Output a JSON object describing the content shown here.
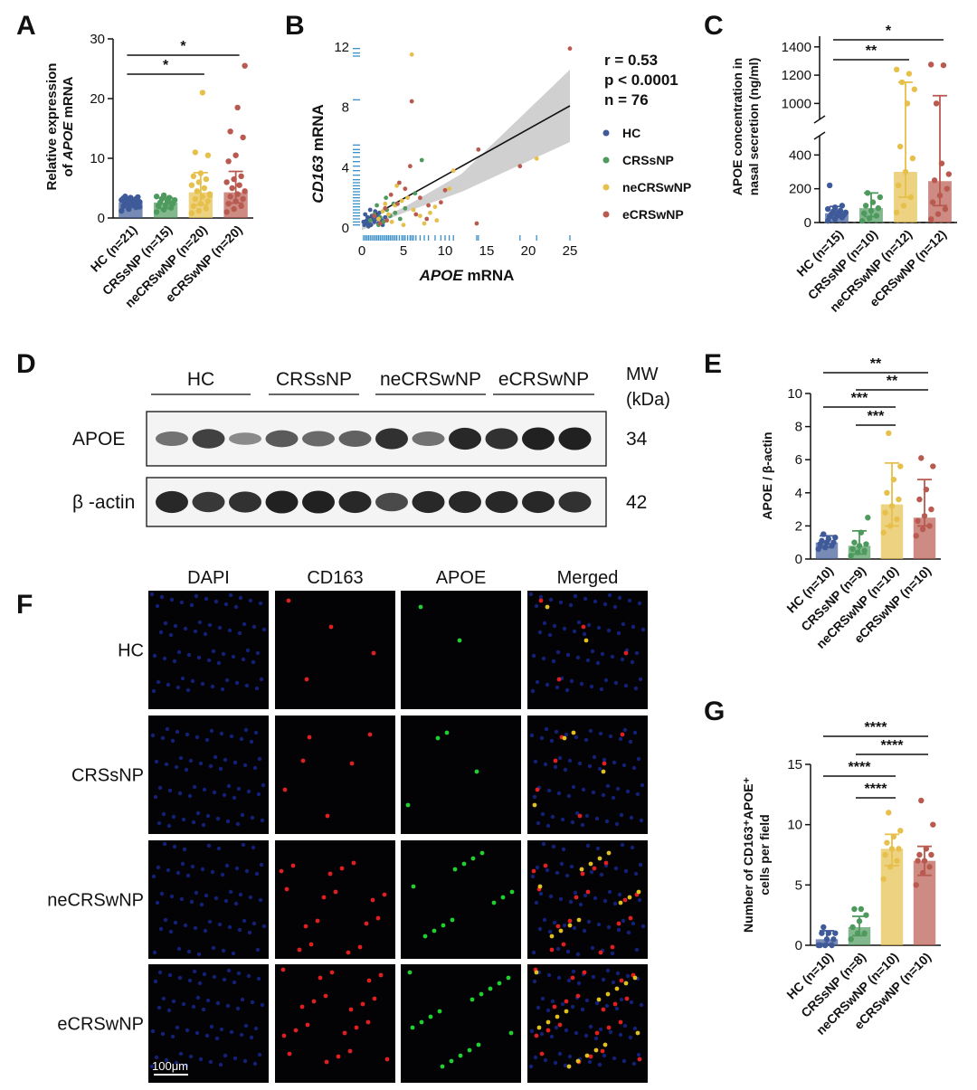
{
  "panel_labels": {
    "A": "A",
    "B": "B",
    "C": "C",
    "D": "D",
    "E": "E",
    "F": "F",
    "G": "G"
  },
  "colors": {
    "HC": "#3f5a99",
    "CRSsNP": "#4e9a5e",
    "neCRSwNP": "#e6c04b",
    "eCRSwNP": "#b85a4f",
    "ci": "#c8c8c8",
    "rug": "#3a8fc8"
  },
  "chart_data": [
    {
      "id": "A",
      "type": "bar",
      "ylabel_line1": "Relative expression",
      "ylabel_line2_prefix": "of ",
      "ylabel_line2_italic": "APOE",
      "ylabel_line2_suffix": " mRNA",
      "ylim": [
        0,
        30
      ],
      "yticks": [
        0,
        10,
        20,
        30
      ],
      "categories": [
        "HC (n=21)",
        "CRSsNP (n=15)",
        "neCRSwNP (n=20)",
        "eCRSwNP (n=20)"
      ],
      "groups": [
        "HC",
        "CRSsNP",
        "neCRSwNP",
        "eCRSwNP"
      ],
      "means": [
        2.6,
        2.6,
        4.3,
        4.3
      ],
      "err_low": [
        1.8,
        1.6,
        2.2,
        2.5
      ],
      "err_high": [
        3.3,
        3.4,
        7.6,
        7.8
      ],
      "points": [
        [
          1.2,
          1.5,
          1.8,
          2.0,
          2.1,
          2.3,
          2.5,
          2.6,
          2.7,
          2.8,
          2.9,
          3.0,
          3.1,
          3.2,
          3.3,
          3.4,
          3.5,
          3.6,
          2.2,
          1.9,
          2.4
        ],
        [
          1.0,
          1.4,
          1.7,
          2.0,
          2.2,
          2.4,
          2.6,
          2.8,
          3.0,
          3.2,
          3.4,
          3.6,
          3.8,
          2.5,
          2.1
        ],
        [
          0.8,
          1.2,
          1.6,
          2.0,
          2.4,
          2.8,
          3.2,
          3.6,
          4.0,
          4.5,
          5.0,
          5.5,
          6.0,
          6.5,
          7.0,
          7.5,
          10.5,
          11.0,
          21.0,
          3.8
        ],
        [
          1.0,
          1.5,
          2.0,
          2.4,
          2.8,
          3.2,
          3.6,
          4.0,
          4.5,
          5.0,
          5.5,
          6.0,
          6.5,
          7.0,
          9.5,
          10.5,
          13.5,
          14.5,
          18.5,
          25.5
        ]
      ],
      "sig": [
        {
          "from": 0,
          "to": 2,
          "label": "*",
          "y": 27.2
        },
        {
          "from": 0,
          "to": 3,
          "label": "*",
          "y": 27.2
        }
      ]
    },
    {
      "id": "B",
      "type": "scatter",
      "xlabel_italic": "APOE",
      "xlabel_suffix": " mRNA",
      "ylabel_italic": "CD163",
      "ylabel_suffix": " mRNA",
      "xlim": [
        0,
        25
      ],
      "ylim": [
        0,
        12
      ],
      "xticks": [
        0,
        5,
        10,
        15,
        20,
        25
      ],
      "yticks": [
        0,
        4,
        8,
        12
      ],
      "stats": [
        "r = 0.53",
        "p < 0.0001",
        "n = 76"
      ],
      "legend": [
        "HC",
        "CRSsNP",
        "neCRSwNP",
        "eCRSwNP"
      ],
      "fit": {
        "x0": 0,
        "y0": 0.4,
        "x1": 25,
        "y1": 8.1
      },
      "points": {
        "HC": [
          [
            0.3,
            0.2
          ],
          [
            0.6,
            0.5
          ],
          [
            0.9,
            0.3
          ],
          [
            1.2,
            0.8
          ],
          [
            1.5,
            0.4
          ],
          [
            1.8,
            0.6
          ],
          [
            2.1,
            1.0
          ],
          [
            0.4,
            0.9
          ],
          [
            1.1,
            0.2
          ],
          [
            2.4,
            0.5
          ],
          [
            0.8,
            0.1
          ],
          [
            1.6,
            1.1
          ],
          [
            2.8,
            0.7
          ],
          [
            0.5,
            0.3
          ],
          [
            1.3,
            0.6
          ],
          [
            2.0,
            0.3
          ],
          [
            0.2,
            0.4
          ],
          [
            1.9,
            0.8
          ],
          [
            2.5,
            0.2
          ],
          [
            1.0,
            1.2
          ],
          [
            0.7,
            0.7
          ]
        ],
        "CRSsNP": [
          [
            1.0,
            0.5
          ],
          [
            1.5,
            0.9
          ],
          [
            2.2,
            0.7
          ],
          [
            3.0,
            1.2
          ],
          [
            2.6,
            0.4
          ],
          [
            1.8,
            1.5
          ],
          [
            3.4,
            0.8
          ],
          [
            4.0,
            1.0
          ],
          [
            2.0,
            0.2
          ],
          [
            3.8,
            1.6
          ],
          [
            5.2,
            1.3
          ],
          [
            4.6,
            0.6
          ],
          [
            6.4,
            2.3
          ],
          [
            7.2,
            4.5
          ],
          [
            2.9,
            2.0
          ]
        ],
        "neCRSwNP": [
          [
            2.0,
            0.6
          ],
          [
            2.5,
            1.1
          ],
          [
            3.2,
            0.9
          ],
          [
            4.0,
            1.5
          ],
          [
            4.8,
            1.8
          ],
          [
            5.5,
            2.0
          ],
          [
            6.2,
            1.2
          ],
          [
            7.0,
            0.8
          ],
          [
            7.5,
            0.3
          ],
          [
            8.2,
            1.0
          ],
          [
            9.0,
            0.5
          ],
          [
            10.5,
            2.6
          ],
          [
            4.2,
            2.8
          ],
          [
            6.0,
            11.5
          ],
          [
            11.0,
            3.8
          ],
          [
            21.0,
            4.6
          ],
          [
            3.6,
            0.4
          ],
          [
            5.0,
            0.2
          ],
          [
            8.8,
            1.4
          ],
          [
            2.8,
            1.6
          ]
        ],
        "eCRSwNP": [
          [
            1.5,
            0.8
          ],
          [
            2.8,
            1.3
          ],
          [
            3.5,
            2.2
          ],
          [
            4.5,
            3.0
          ],
          [
            5.2,
            2.6
          ],
          [
            6.0,
            8.4
          ],
          [
            6.5,
            0.9
          ],
          [
            7.0,
            2.0
          ],
          [
            8.0,
            1.5
          ],
          [
            13.8,
            0.3
          ],
          [
            14.0,
            5.2
          ],
          [
            19.0,
            4.1
          ],
          [
            25.0,
            11.9
          ],
          [
            5.8,
            4.1
          ],
          [
            9.5,
            1.7
          ],
          [
            10.0,
            2.5
          ],
          [
            3.0,
            0.5
          ],
          [
            4.3,
            1.6
          ],
          [
            7.8,
            0.6
          ],
          [
            2.2,
            0.3
          ]
        ]
      },
      "rug_y": [
        11.9,
        11.6,
        11.4,
        8.5,
        5.5,
        5.2,
        5.0,
        4.7,
        4.4,
        4.1,
        3.8,
        3.5,
        3.2,
        3.0,
        2.8,
        2.6,
        2.4,
        2.2,
        2.0,
        1.8,
        1.6,
        1.4,
        1.2,
        1.0,
        0.8,
        0.6,
        0.4,
        0.2
      ],
      "rug_x": [
        0.2,
        0.4,
        0.6,
        0.8,
        1.0,
        1.2,
        1.4,
        1.6,
        1.8,
        2.0,
        2.2,
        2.4,
        2.6,
        2.8,
        3.0,
        3.2,
        3.4,
        3.6,
        3.8,
        4.0,
        4.2,
        4.5,
        4.8,
        5.0,
        5.2,
        5.5,
        5.8,
        6.0,
        6.2,
        6.5,
        7.0,
        7.5,
        8.0,
        8.8,
        9.5,
        10.0,
        10.5,
        11.0,
        13.8,
        14.0,
        19.0,
        21.0,
        25.0
      ]
    },
    {
      "id": "C",
      "type": "bar",
      "ylabel_line1": "APOE concentration in",
      "ylabel_line2": "nasal secretion (ng/ml)",
      "yticks_low": [
        0,
        200,
        400
      ],
      "yticks_high": [
        1000,
        1200,
        1400
      ],
      "categories": [
        "HC (n=15)",
        "CRSsNP (n=10)",
        "neCRSwNP (n=12)",
        "eCRSwNP (n=12)"
      ],
      "groups": [
        "HC",
        "CRSsNP",
        "neCRSwNP",
        "eCRSwNP"
      ],
      "means": [
        55,
        85,
        300,
        245
      ],
      "err_low": [
        30,
        35,
        150,
        100
      ],
      "err_high": [
        95,
        175,
        1150,
        1055
      ],
      "points": [
        [
          10,
          20,
          30,
          35,
          40,
          45,
          50,
          55,
          60,
          65,
          70,
          80,
          90,
          100,
          220
        ],
        [
          10,
          25,
          40,
          55,
          70,
          85,
          100,
          120,
          150,
          175
        ],
        [
          60,
          100,
          150,
          220,
          300,
          380,
          450,
          1000,
          1100,
          1150,
          1210,
          1240
        ],
        [
          20,
          50,
          80,
          120,
          160,
          200,
          250,
          350,
          500,
          1000,
          1270,
          1275
        ]
      ],
      "sig": [
        {
          "from": 0,
          "to": 2,
          "label": "**"
        },
        {
          "from": 0,
          "to": 3,
          "label": "*"
        }
      ]
    },
    {
      "id": "E",
      "type": "bar",
      "ylabel": "APOE / β-actin",
      "ylim": [
        0,
        10
      ],
      "yticks": [
        0,
        2,
        4,
        6,
        8,
        10
      ],
      "categories": [
        "HC (n=10)",
        "CRSsNP (n=9)",
        "neCRSwNP (n=10)",
        "eCRSwNP (n=10)"
      ],
      "groups": [
        "HC",
        "CRSsNP",
        "neCRSwNP",
        "eCRSwNP"
      ],
      "means": [
        1.0,
        0.8,
        3.3,
        2.5
      ],
      "err_low": [
        0.7,
        0.3,
        2.0,
        2.0
      ],
      "err_high": [
        1.4,
        1.7,
        5.8,
        4.8
      ],
      "points": [
        [
          0.6,
          0.7,
          0.8,
          0.9,
          1.0,
          1.0,
          1.1,
          1.2,
          1.3,
          1.5
        ],
        [
          0.2,
          0.4,
          0.5,
          0.6,
          0.8,
          0.9,
          1.0,
          1.6,
          2.5
        ],
        [
          1.6,
          2.0,
          2.4,
          2.8,
          3.2,
          3.6,
          4.0,
          4.8,
          5.6,
          7.6
        ],
        [
          1.4,
          1.8,
          2.0,
          2.3,
          2.6,
          3.0,
          3.6,
          4.2,
          5.6,
          6.1
        ]
      ],
      "sig": [
        {
          "from": 0,
          "to": 3,
          "label": "**",
          "y": 11.6
        },
        {
          "from": 1,
          "to": 3,
          "label": "**",
          "y": 10.4
        },
        {
          "from": 0,
          "to": 2,
          "label": "***",
          "y": 9.2
        },
        {
          "from": 1,
          "to": 2,
          "label": "***",
          "y": 8.0
        }
      ]
    },
    {
      "id": "G",
      "type": "bar",
      "ylabel_line1": "Number of CD163⁺APOE⁺",
      "ylabel_line2": "cells per field",
      "ylim": [
        0,
        15
      ],
      "yticks": [
        0,
        5,
        10,
        15
      ],
      "categories": [
        "HC (n=10)",
        "CRSsNP (n=8)",
        "neCRSwNP (n=10)",
        "eCRSwNP (n=10)"
      ],
      "groups": [
        "HC",
        "CRSsNP",
        "neCRSwNP",
        "eCRSwNP"
      ],
      "means": [
        0.5,
        1.5,
        8.0,
        7.0
      ],
      "err_low": [
        0.1,
        0.8,
        6.6,
        5.8
      ],
      "err_high": [
        1.2,
        2.4,
        9.2,
        8.2
      ],
      "points": [
        [
          0,
          0,
          0,
          0,
          0.5,
          0.5,
          1,
          1,
          1,
          1.5
        ],
        [
          0.5,
          1,
          1,
          1.5,
          2,
          2.5,
          3,
          3
        ],
        [
          5.5,
          6.5,
          7,
          7.5,
          8,
          8,
          8.5,
          9,
          9.5,
          11
        ],
        [
          5,
          6,
          6.5,
          7,
          7,
          7.5,
          7.5,
          8,
          10,
          12
        ]
      ],
      "sig": [
        {
          "from": 0,
          "to": 3,
          "label": "****",
          "y": 17.4
        },
        {
          "from": 1,
          "to": 3,
          "label": "****",
          "y": 16.0
        },
        {
          "from": 0,
          "to": 2,
          "label": "****",
          "y": 14.6
        },
        {
          "from": 1,
          "to": 2,
          "label": "****",
          "y": 12.8
        }
      ]
    }
  ],
  "western": {
    "groups": [
      "HC",
      "CRSsNP",
      "neCRSwNP",
      "eCRSwNP"
    ],
    "mw_line1": "MW",
    "mw_line2": "(kDa)",
    "rows": [
      {
        "label": "APOE",
        "mw": "34",
        "intensity": [
          0.45,
          0.75,
          0.3,
          0.6,
          0.5,
          0.55,
          0.85,
          0.45,
          0.9,
          0.85,
          0.95,
          0.95
        ]
      },
      {
        "label": "β -actin",
        "mw": "42",
        "intensity": [
          0.9,
          0.8,
          0.85,
          0.95,
          0.95,
          0.9,
          0.7,
          0.9,
          0.9,
          0.9,
          0.9,
          0.85
        ]
      }
    ]
  },
  "microscopy": {
    "columns": [
      "DAPI",
      "CD163",
      "APOE",
      "Merged"
    ],
    "rows": [
      "HC",
      "CRSsNP",
      "neCRSwNP",
      "eCRSwNP"
    ],
    "scalebar": "100μm",
    "signal": [
      {
        "red": 4,
        "green": 2
      },
      {
        "red": 6,
        "green": 4
      },
      {
        "red": 18,
        "green": 12
      },
      {
        "red": 22,
        "green": 16
      }
    ]
  }
}
